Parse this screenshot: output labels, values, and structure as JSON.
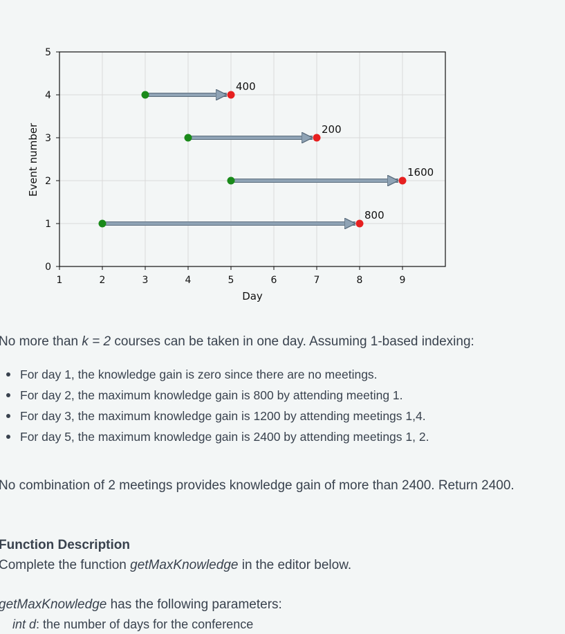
{
  "chart_data": {
    "type": "line",
    "xlabel": "Day",
    "ylabel": "Event number",
    "xlim": [
      1,
      10
    ],
    "ylim": [
      0,
      5
    ],
    "xticks": [
      1,
      2,
      3,
      4,
      5,
      6,
      7,
      8,
      9
    ],
    "yticks": [
      0,
      1,
      2,
      3,
      4,
      5
    ],
    "grid": true,
    "events": [
      {
        "event": 1,
        "start": 2,
        "end": 8,
        "label": "800"
      },
      {
        "event": 2,
        "start": 5,
        "end": 9,
        "label": "1600"
      },
      {
        "event": 3,
        "start": 4,
        "end": 7,
        "label": "200"
      },
      {
        "event": 4,
        "start": 3,
        "end": 5,
        "label": "400"
      }
    ],
    "colors": {
      "start": "#1a8a1a",
      "end": "#e62020",
      "arrow": "#8fa3b5"
    }
  },
  "text": {
    "p1_pre": "No more than ",
    "p1_k": "k = 2",
    "p1_post": " courses can be taken in one day. Assuming 1-based indexing:",
    "bullets": [
      "For day 1, the knowledge gain is zero since there are no meetings.",
      "For day 2, the maximum knowledge gain is 800 by attending meeting 1.",
      "For day 3, the maximum knowledge gain is 1200 by attending meetings 1,4.",
      "For day 5, the maximum knowledge gain is 2400 by attending meetings 1, 2."
    ],
    "p2": "No combination of 2 meetings provides knowledge gain of more than 2400. Return 2400.",
    "heading": "Function Description",
    "p3_pre": "Complete the function ",
    "p3_fn": "getMaxKnowledge",
    "p3_post": " in the editor below.",
    "p4_fn": "getMaxKnowledge",
    "p4_post": " has the following parameters:",
    "p5_var": "int d",
    "p5_post": ": the number of days for the conference"
  }
}
